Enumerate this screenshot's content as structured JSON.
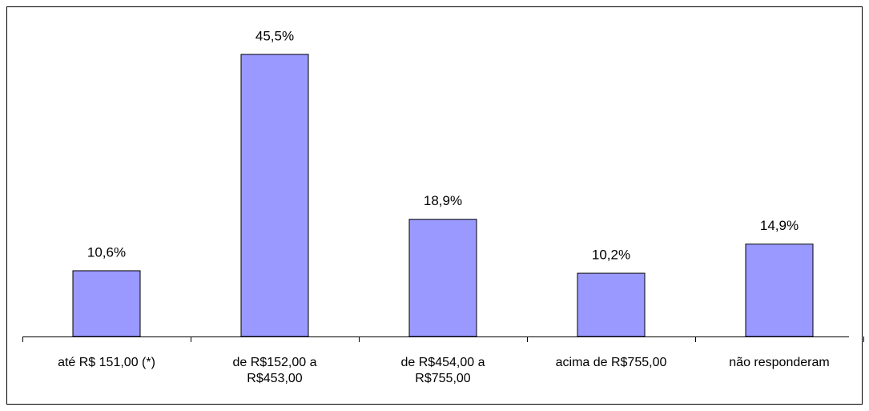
{
  "chart_data": {
    "type": "bar",
    "categories": [
      "até R$ 151,00 (*)",
      "de R$152,00 a R$453,00",
      "de R$454,00 a R$755,00",
      "acima de R$755,00",
      "não responderam"
    ],
    "values": [
      10.6,
      45.5,
      18.9,
      10.2,
      14.9
    ],
    "value_labels": [
      "10,6%",
      "45,5%",
      "18,9%",
      "10,2%",
      "14,9%"
    ],
    "color": "#9999ff"
  }
}
